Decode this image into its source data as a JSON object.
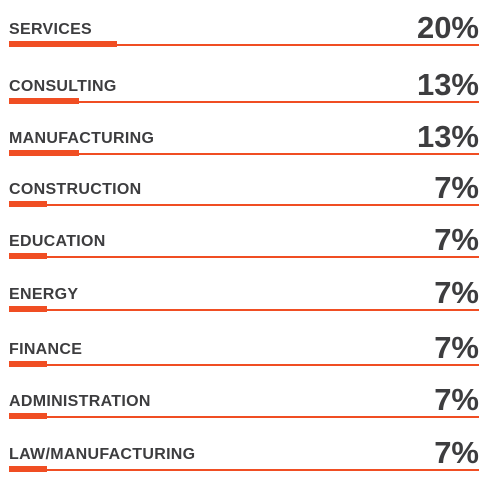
{
  "chart_data": {
    "type": "bar",
    "categories": [
      "SERVICES",
      "CONSULTING",
      "MANUFACTURING",
      "CONSTRUCTION",
      "EDUCATION",
      "ENERGY",
      "FINANCE",
      "ADMINISTRATION",
      "LAW/MANUFACTURING"
    ],
    "values": [
      20,
      13,
      13,
      7,
      7,
      7,
      7,
      7,
      7
    ],
    "value_labels": [
      "20%",
      "13%",
      "13%",
      "7%",
      "7%",
      "7%",
      "7%",
      "7%",
      "7%"
    ],
    "unit": "%",
    "xlim": [
      0,
      100
    ],
    "orientation": "horizontal",
    "bar_color": "#f04e23",
    "text_color": "#3d3d3f",
    "grid": false,
    "legend": "none"
  }
}
